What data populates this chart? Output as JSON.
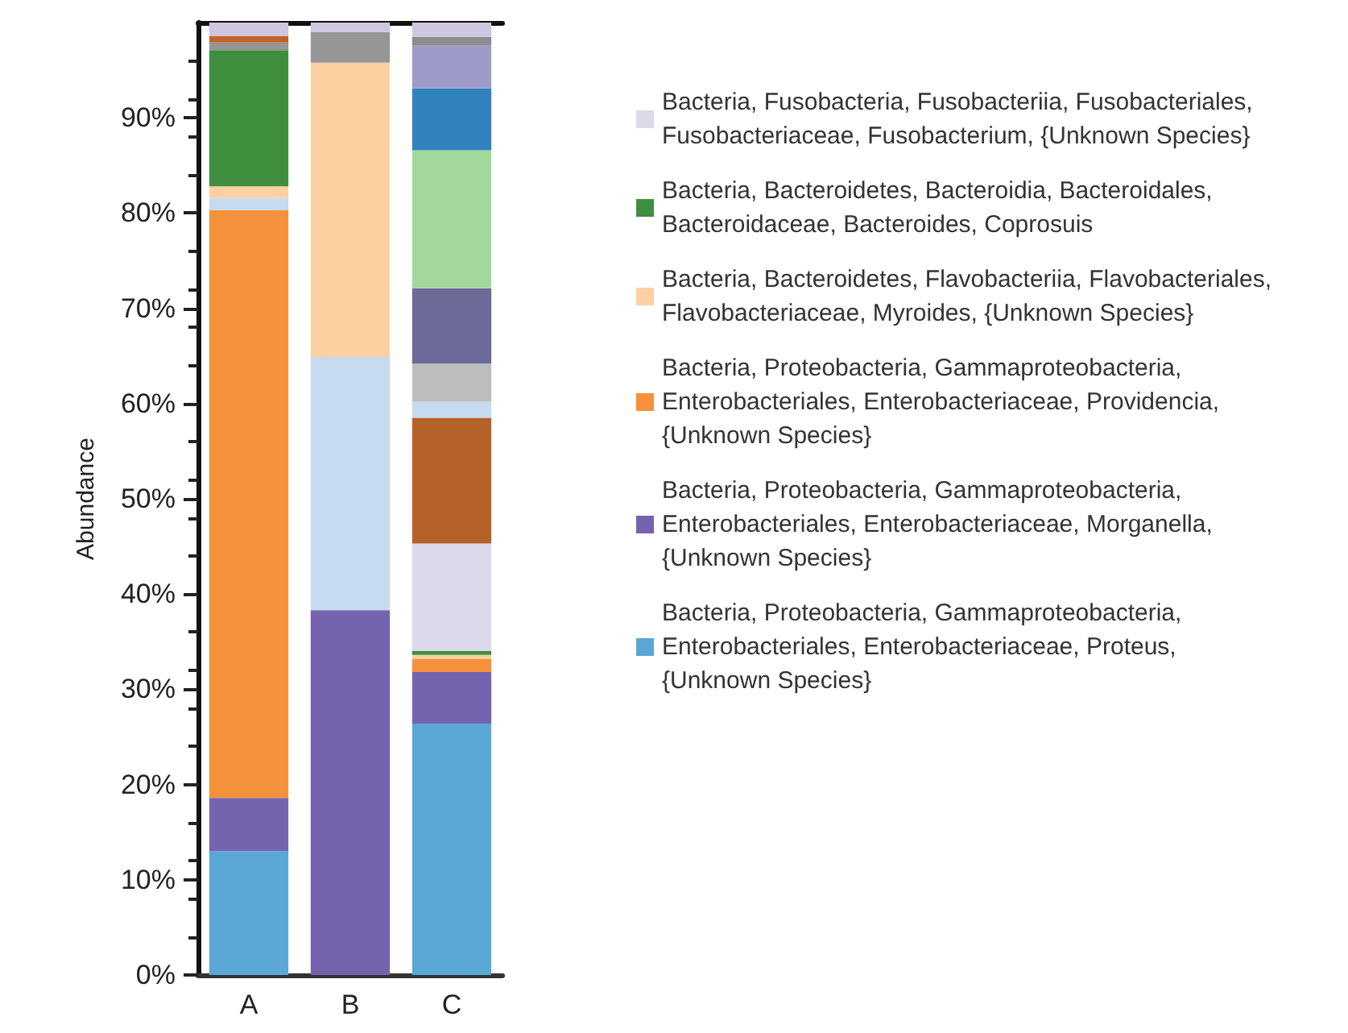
{
  "chart_data": {
    "type": "bar",
    "stacked": true,
    "ylabel": "Abundance",
    "categories": [
      "A",
      "B",
      "C"
    ],
    "ylim": [
      0,
      100
    ],
    "yticks": [
      {
        "value": 0,
        "label": "0%"
      },
      {
        "value": 10,
        "label": "10%"
      },
      {
        "value": 20,
        "label": "20%"
      },
      {
        "value": 30,
        "label": "30%"
      },
      {
        "value": 40,
        "label": "40%"
      },
      {
        "value": 50,
        "label": "50%"
      },
      {
        "value": 60,
        "label": "60%"
      },
      {
        "value": 70,
        "label": "70%"
      },
      {
        "value": 80,
        "label": "80%"
      },
      {
        "value": 90,
        "label": "90%"
      }
    ],
    "legend": "right",
    "grid": false,
    "series": [
      {
        "name": "Bacteria, Proteobacteria, Gammaproteobacteria, Enterobacteriales, Enterobacteriaceae, Proteus, {Unknown Species}",
        "color": "#5aa7d6",
        "values": [
          13,
          null,
          26.4
        ]
      },
      {
        "name": "Bacteria, Proteobacteria, Gammaproteobacteria, Enterobacteriales, Enterobacteriaceae, Morganella, {Unknown Species}",
        "color": "#7563b0",
        "values": [
          5.6,
          38.3,
          5.4
        ]
      },
      {
        "name": "Bacteria, Proteobacteria, Gammaproteobacteria, Enterobacteriales, Enterobacteriaceae, Providencia, {Unknown Species}",
        "color": "#f5913a",
        "values": [
          61.7,
          null,
          1.4
        ]
      },
      {
        "color": "#c6dbef",
        "values": [
          1.3,
          26.6,
          null
        ]
      },
      {
        "name": "Bacteria, Bacteroidetes, Flavobacteriia, Flavobacteriales, Flavobacteriaceae, Myroides, {Unknown Species}",
        "color": "#fdd0a2",
        "values": [
          1.2,
          30.9,
          0.4
        ]
      },
      {
        "name": "Bacteria, Bacteroidetes, Bacteroidia, Bacteroidales, Bacteroidaceae, Bacteroides, Coprosuis",
        "color": "#3f8f3f",
        "values": [
          14.3,
          null,
          0.4
        ]
      },
      {
        "name": "Bacteria, Fusobacteria, Fusobacteriia, Fusobacteriales, Fusobacteriaceae, Fusobacterium, {Unknown Species}",
        "color": "#dadaeb",
        "values": [
          null,
          null,
          11.3
        ]
      },
      {
        "color": "#b5612a",
        "values": [
          null,
          null,
          13.2
        ]
      },
      {
        "color": "#c6dbef",
        "values": [
          null,
          null,
          1.7
        ]
      },
      {
        "color": "#969696",
        "values": [
          0.8,
          3.2,
          null
        ]
      },
      {
        "color": "#bdbdbd",
        "values": [
          null,
          null,
          4.0
        ]
      },
      {
        "color": "#c0622d",
        "values": [
          0.7,
          null,
          null
        ]
      },
      {
        "color": "#6b6a99",
        "values": [
          null,
          null,
          7.9
        ]
      },
      {
        "color": "#a1d99b",
        "values": [
          null,
          null,
          14.5
        ]
      },
      {
        "color": "#3182bd",
        "values": [
          null,
          null,
          6.5
        ]
      },
      {
        "color": "#9e9ac8",
        "values": [
          null,
          null,
          4.5
        ]
      },
      {
        "color": "#8c8c8c",
        "values": [
          null,
          null,
          0.9
        ]
      },
      {
        "color": "#cfc6e0",
        "values": [
          1.4,
          1.0,
          1.5
        ]
      }
    ]
  }
}
